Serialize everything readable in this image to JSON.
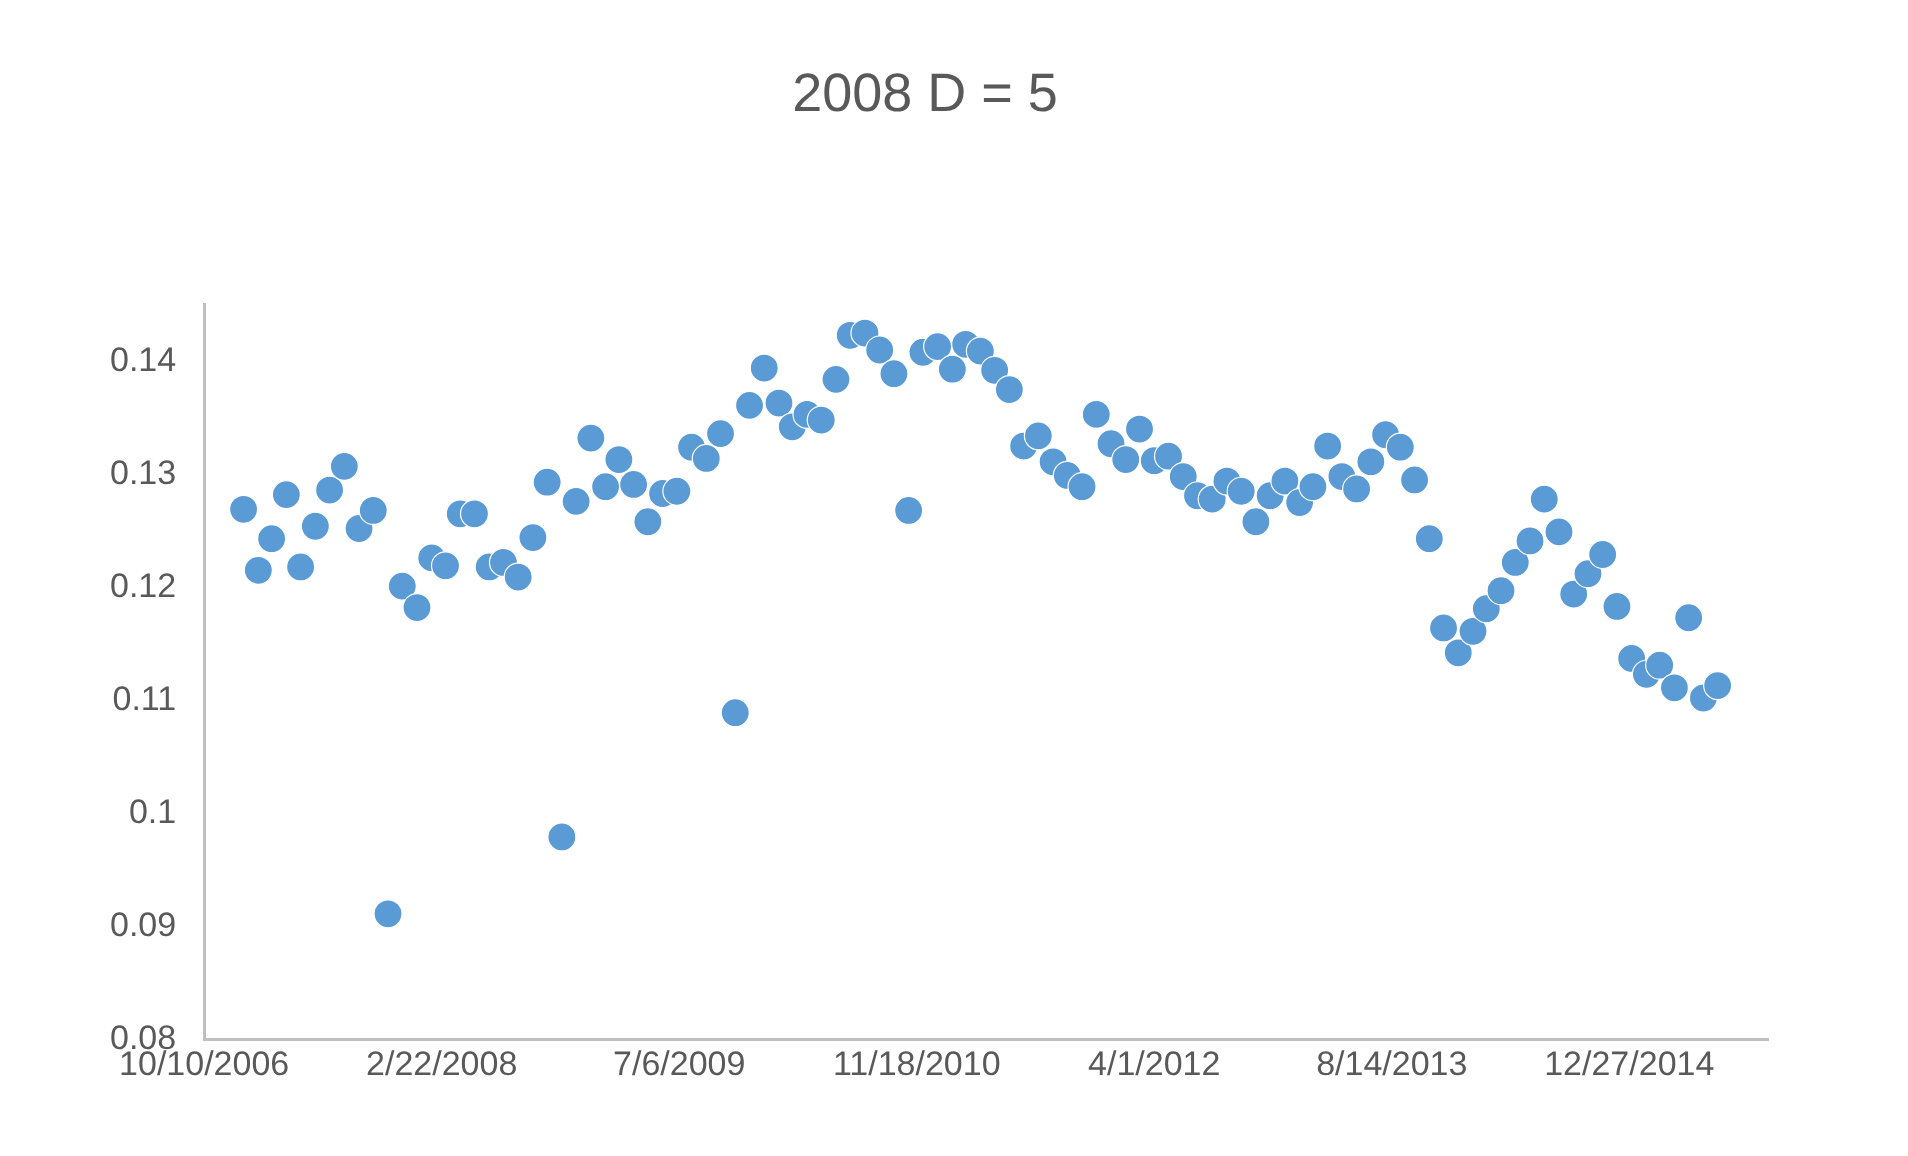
{
  "chart_data": {
    "type": "scatter",
    "title": "2008 D = 5",
    "marker": "circle",
    "grid": false,
    "legend": false,
    "x": [
      "2007-01",
      "2007-02",
      "2007-03",
      "2007-04",
      "2007-05",
      "2007-06",
      "2007-07",
      "2007-08",
      "2007-09",
      "2007-10",
      "2007-11",
      "2007-12",
      "2008-01",
      "2008-02",
      "2008-03",
      "2008-04",
      "2008-05",
      "2008-06",
      "2008-07",
      "2008-08",
      "2008-09",
      "2008-10",
      "2008-11",
      "2008-12",
      "2009-01",
      "2009-02",
      "2009-03",
      "2009-04",
      "2009-05",
      "2009-06",
      "2009-07",
      "2009-08",
      "2009-09",
      "2009-10",
      "2009-11",
      "2009-12",
      "2010-01",
      "2010-02",
      "2010-03",
      "2010-04",
      "2010-05",
      "2010-06",
      "2010-07",
      "2010-08",
      "2010-09",
      "2010-10",
      "2010-11",
      "2010-12",
      "2011-01",
      "2011-02",
      "2011-03",
      "2011-04",
      "2011-05",
      "2011-06",
      "2011-07",
      "2011-08",
      "2011-09",
      "2011-10",
      "2011-11",
      "2011-12",
      "2012-01",
      "2012-02",
      "2012-03",
      "2012-04",
      "2012-05",
      "2012-06",
      "2012-07",
      "2012-08",
      "2012-09",
      "2012-10",
      "2012-11",
      "2012-12",
      "2013-01",
      "2013-02",
      "2013-03",
      "2013-04",
      "2013-05",
      "2013-06",
      "2013-07",
      "2013-08",
      "2013-09",
      "2013-10",
      "2013-11",
      "2013-12",
      "2014-01",
      "2014-02",
      "2014-03",
      "2014-04",
      "2014-05",
      "2014-06",
      "2014-07",
      "2014-08",
      "2014-09",
      "2014-10",
      "2014-11",
      "2014-12",
      "2015-01",
      "2015-02",
      "2015-03",
      "2015-04",
      "2015-05",
      "2015-06",
      "2015-07"
    ],
    "series": [
      {
        "color": "#5b9bd5",
        "values": [
          0.1269,
          0.1215,
          0.1243,
          0.1282,
          0.1218,
          0.1254,
          0.1286,
          0.1307,
          0.1252,
          0.1268,
          0.0911,
          0.1201,
          0.1182,
          0.1226,
          0.1219,
          0.1265,
          0.1265,
          0.1218,
          0.1222,
          0.1209,
          0.1244,
          0.1293,
          0.0979,
          0.1276,
          0.1332,
          0.1289,
          0.1313,
          0.1291,
          0.1258,
          0.1283,
          0.1285,
          0.1324,
          0.1314,
          0.1336,
          0.1089,
          0.1361,
          0.1394,
          0.1363,
          0.1342,
          0.1353,
          0.1348,
          0.1384,
          0.1423,
          0.1425,
          0.141,
          0.1389,
          0.1268,
          0.1408,
          0.1413,
          0.1393,
          0.1415,
          0.1409,
          0.1392,
          0.1375,
          0.1325,
          0.1334,
          0.1311,
          0.1299,
          0.1289,
          0.1353,
          0.1327,
          0.1313,
          0.134,
          0.1312,
          0.1316,
          0.1298,
          0.1281,
          0.1278,
          0.1294,
          0.1285,
          0.1258,
          0.1281,
          0.1294,
          0.1275,
          0.1289,
          0.1325,
          0.1298,
          0.1287,
          0.1311,
          0.1335,
          0.1324,
          0.1295,
          0.1243,
          0.1164,
          0.1142,
          0.1161,
          0.1181,
          0.1197,
          0.1222,
          0.1241,
          0.1278,
          0.1249,
          0.1194,
          0.1212,
          0.1229,
          0.1183,
          0.1137,
          0.1123,
          0.1131,
          0.1111,
          0.1173,
          0.1102,
          0.1113
        ]
      }
    ],
    "xlim": [
      "2006-10-10",
      "2015-10-15"
    ],
    "xticks": [
      {
        "value": "2006-10-10",
        "label": "10/10/2006"
      },
      {
        "value": "2008-02-22",
        "label": "2/22/2008"
      },
      {
        "value": "2009-07-06",
        "label": "7/6/2009"
      },
      {
        "value": "2010-11-18",
        "label": "11/18/2010"
      },
      {
        "value": "2012-04-01",
        "label": "4/1/2012"
      },
      {
        "value": "2013-08-14",
        "label": "8/14/2013"
      },
      {
        "value": "2014-12-27",
        "label": "12/27/2014"
      }
    ],
    "ylim": [
      0.08,
      0.145
    ],
    "yticks": [
      0.08,
      0.09,
      {
        "value": 0.1,
        "label": "0.1"
      },
      0.11,
      0.12,
      0.13,
      0.14
    ]
  }
}
